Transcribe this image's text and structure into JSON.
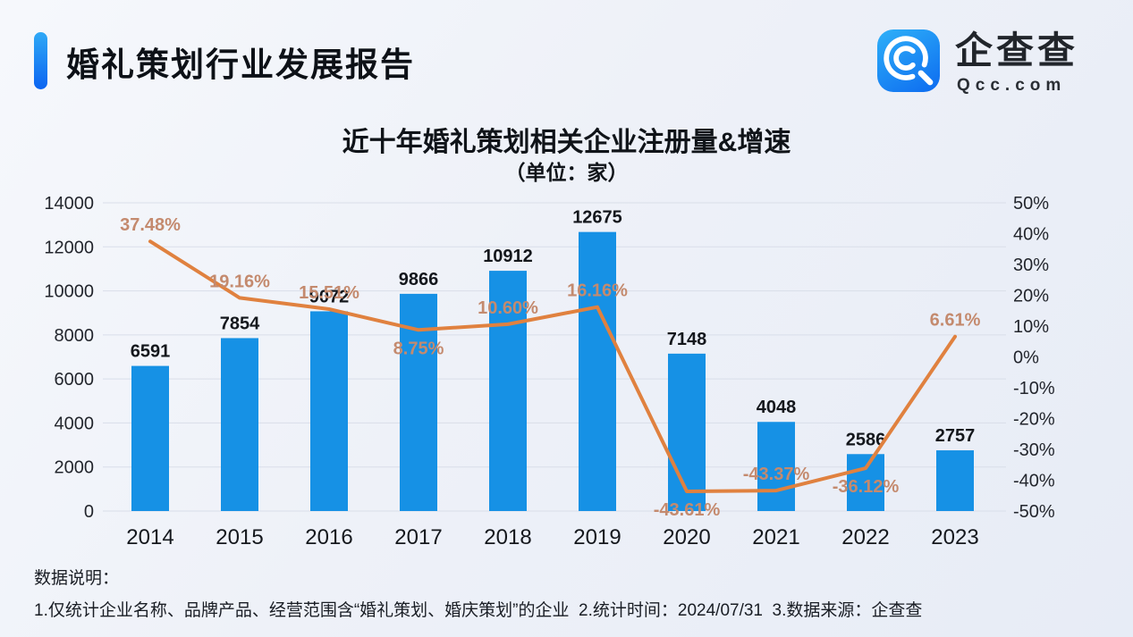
{
  "header": {
    "title": "婚礼策划行业发展报告",
    "logo": {
      "cn": "企查查",
      "en": "Qcc.com"
    }
  },
  "chart_data": {
    "type": "bar",
    "title": "近十年婚礼策划相关企业注册量&增速",
    "subtitle": "（单位：家）",
    "categories": [
      "2014",
      "2015",
      "2016",
      "2017",
      "2018",
      "2019",
      "2020",
      "2021",
      "2022",
      "2023"
    ],
    "series": [
      {
        "name": "企业注册量",
        "type": "bar",
        "values": [
          6591,
          7854,
          9072,
          9866,
          10912,
          12675,
          7148,
          4048,
          2586,
          2757
        ],
        "labels": [
          "6591",
          "7854",
          "9072",
          "9866",
          "10912",
          "12675",
          "7148",
          "4048",
          "2586",
          "2757"
        ],
        "axis": "left",
        "color": "#1691e5",
        "label_color": "#14171c"
      },
      {
        "name": "增速",
        "type": "line",
        "values": [
          37.48,
          19.16,
          15.51,
          8.75,
          10.6,
          16.16,
          -43.61,
          -43.37,
          -36.12,
          6.61
        ],
        "labels": [
          "37.48%",
          "19.16%",
          "15.51%",
          "8.75%",
          "10.60%",
          "16.16%",
          "-43.61%",
          "-43.37%",
          "-36.12%",
          "6.61%"
        ],
        "label_pos": [
          "above",
          "above",
          "above",
          "below",
          "above",
          "above",
          "below",
          "above",
          "below",
          "above"
        ],
        "axis": "right",
        "color": "#e0813f",
        "label_color": "#c48a6e"
      }
    ],
    "left_axis": {
      "min": 0,
      "max": 14000,
      "step": 2000,
      "ticks_top_to_bottom": [
        "14000",
        "12000",
        "10000",
        "8000",
        "6000",
        "4000",
        "2000",
        "0"
      ]
    },
    "right_axis": {
      "min": -50,
      "max": 50,
      "step": 10,
      "ticks_top_to_bottom": [
        "50%",
        "40%",
        "30%",
        "20%",
        "10%",
        "0%",
        "-10%",
        "-20%",
        "-30%",
        "-40%",
        "-50%"
      ]
    },
    "grid": "horizontal gridlines on left-axis steps",
    "legend": "none"
  },
  "footer": {
    "label": "数据说明：",
    "note": "1.仅统计企业名称、品牌产品、经营范围含“婚礼策划、婚庆策划”的企业  2.统计时间：2024/07/31  3.数据来源：企查查"
  }
}
